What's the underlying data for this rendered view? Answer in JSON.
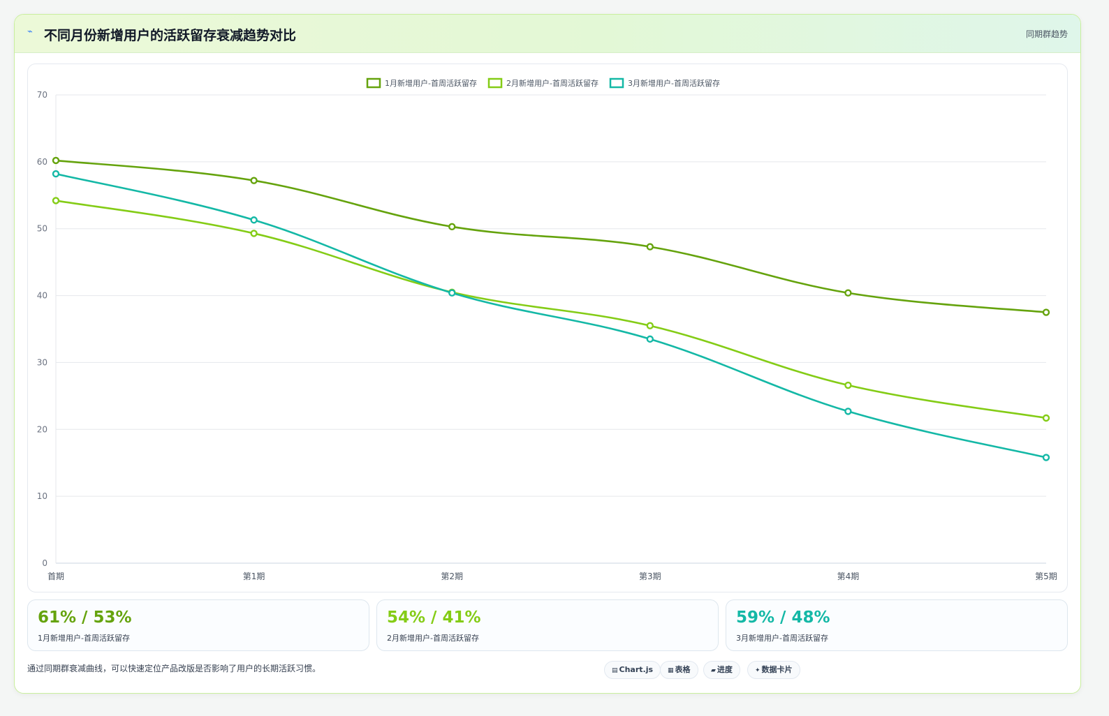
{
  "header": {
    "icon": "⌁",
    "title": "不同月份新增用户的活跃留存衰减趋势对比",
    "subtitle": "同期群趋势"
  },
  "chart_data": {
    "type": "line",
    "categories": [
      "首期",
      "第1期",
      "第2期",
      "第3期",
      "第4期",
      "第5期"
    ],
    "series": [
      {
        "name": "1月新增用户-首周活跃留存",
        "color": "#65a30d",
        "values": [
          60.2,
          57.2,
          50.3,
          47.3,
          40.4,
          37.5
        ]
      },
      {
        "name": "2月新增用户-首周活跃留存",
        "color": "#84cc16",
        "values": [
          54.2,
          49.3,
          40.5,
          35.5,
          26.6,
          21.7
        ]
      },
      {
        "name": "3月新增用户-首周活跃留存",
        "color": "#14b8a6",
        "values": [
          58.2,
          51.3,
          40.4,
          33.5,
          22.7,
          15.8
        ]
      }
    ],
    "ylim": [
      0,
      70
    ],
    "yticks": [
      0,
      10,
      20,
      30,
      40,
      50,
      60,
      70
    ],
    "grid": true,
    "legend": "top-center",
    "xlabel": "",
    "ylabel": ""
  },
  "stats": [
    {
      "value": "61% / 53%",
      "label": "1月新增用户-首周活跃留存",
      "color": "#65a30d"
    },
    {
      "value": "54% / 41%",
      "label": "2月新增用户-首周活跃留存",
      "color": "#84cc16"
    },
    {
      "value": "59% / 48%",
      "label": "3月新增用户-首周活跃留存",
      "color": "#14b8a6"
    }
  ],
  "footnote": "通过同期群衰减曲线，可以快速定位产品改版是否影响了用户的长期活跃习惯。",
  "chips": [
    {
      "icon": "▤",
      "label": "Chart.js"
    },
    {
      "icon": "▦",
      "label": "表格"
    },
    {
      "icon": "▰",
      "label": "进度"
    },
    {
      "icon": "✦",
      "label": "数据卡片"
    }
  ]
}
